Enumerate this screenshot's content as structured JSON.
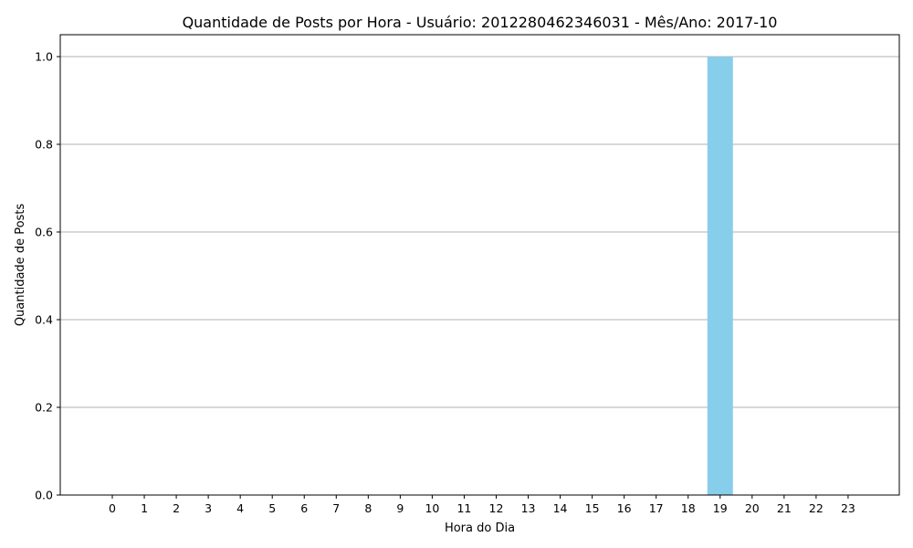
{
  "chart_data": {
    "type": "bar",
    "title": "Quantidade de Posts por Hora - Usuário: 2012280462346031 - Mês/Ano: 2017-10",
    "xlabel": "Hora do Dia",
    "ylabel": "Quantidade de Posts",
    "categories": [
      "0",
      "1",
      "2",
      "3",
      "4",
      "5",
      "6",
      "7",
      "8",
      "9",
      "10",
      "11",
      "12",
      "13",
      "14",
      "15",
      "16",
      "17",
      "18",
      "19",
      "20",
      "21",
      "22",
      "23"
    ],
    "values": [
      0,
      0,
      0,
      0,
      0,
      0,
      0,
      0,
      0,
      0,
      0,
      0,
      0,
      0,
      0,
      0,
      0,
      0,
      0,
      1,
      0,
      0,
      0,
      0
    ],
    "ylim": [
      0,
      1.05
    ],
    "yticks": [
      "0.0",
      "0.2",
      "0.4",
      "0.6",
      "0.8",
      "1.0"
    ],
    "ytick_values": [
      0,
      0.2,
      0.4,
      0.6,
      0.8,
      1.0
    ],
    "grid": "y",
    "legend": "none",
    "bar_color": "#87ceeb"
  }
}
